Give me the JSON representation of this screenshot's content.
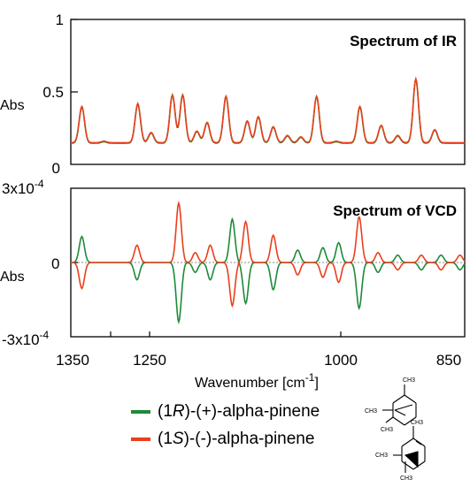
{
  "chart_data": [
    {
      "type": "line",
      "title": "Spectrum of IR",
      "xlabel": "",
      "ylabel": "Abs",
      "xlim": [
        1350,
        850
      ],
      "ylim": [
        0,
        1
      ],
      "y_ticks": [
        "0",
        "0.5",
        "1"
      ],
      "grid": false,
      "baseline": 0.15,
      "peaks": [
        {
          "x": 1336,
          "y": 0.4
        },
        {
          "x": 1308,
          "y": 0.16
        },
        {
          "x": 1265,
          "y": 0.42
        },
        {
          "x": 1248,
          "y": 0.22
        },
        {
          "x": 1221,
          "y": 0.48
        },
        {
          "x": 1208,
          "y": 0.48
        },
        {
          "x": 1190,
          "y": 0.23
        },
        {
          "x": 1177,
          "y": 0.29
        },
        {
          "x": 1153,
          "y": 0.47
        },
        {
          "x": 1126,
          "y": 0.3
        },
        {
          "x": 1112,
          "y": 0.33
        },
        {
          "x": 1093,
          "y": 0.26
        },
        {
          "x": 1075,
          "y": 0.2
        },
        {
          "x": 1058,
          "y": 0.19
        },
        {
          "x": 1038,
          "y": 0.47
        },
        {
          "x": 1013,
          "y": 0.16
        },
        {
          "x": 983,
          "y": 0.4
        },
        {
          "x": 956,
          "y": 0.27
        },
        {
          "x": 935,
          "y": 0.2
        },
        {
          "x": 912,
          "y": 0.59
        },
        {
          "x": 888,
          "y": 0.24
        }
      ],
      "series": [
        {
          "name": "(1R)-(+)-alpha-pinene",
          "color": "#1e8a3a"
        },
        {
          "name": "(1S)-(-)-alpha-pinene",
          "color": "#e8401c"
        }
      ]
    },
    {
      "type": "line",
      "title": "Spectrum of VCD",
      "xlabel": "Wavenumber [cm-1]",
      "ylabel": "Abs",
      "xlim": [
        1350,
        850
      ],
      "ylim": [
        -0.0003,
        0.0003
      ],
      "y_ticks": [
        "-3x10-4",
        "0",
        "3x10-4"
      ],
      "x_ticks": [
        "1350",
        "1250",
        "1000",
        "850"
      ],
      "grid": false,
      "zero_line": true,
      "peaks_1R": [
        {
          "x": 1336,
          "y": 0.000105
        },
        {
          "x": 1266,
          "y": -7e-05
        },
        {
          "x": 1213,
          "y": -0.00024
        },
        {
          "x": 1192,
          "y": -4e-05
        },
        {
          "x": 1173,
          "y": -7e-05
        },
        {
          "x": 1145,
          "y": 0.000175
        },
        {
          "x": 1128,
          "y": -0.000165
        },
        {
          "x": 1093,
          "y": -0.00011
        },
        {
          "x": 1062,
          "y": 5e-05
        },
        {
          "x": 1030,
          "y": 6e-05
        },
        {
          "x": 1010,
          "y": 8e-05
        },
        {
          "x": 984,
          "y": -0.000185
        },
        {
          "x": 960,
          "y": -4e-05
        },
        {
          "x": 935,
          "y": 3e-05
        },
        {
          "x": 905,
          "y": -3e-05
        },
        {
          "x": 880,
          "y": 3e-05
        },
        {
          "x": 856,
          "y": -3e-05
        }
      ],
      "series": [
        {
          "name": "(1R)-(+)-alpha-pinene",
          "color": "#1e8a3a"
        },
        {
          "name": "(1S)-(-)-alpha-pinene",
          "color": "#e8401c"
        }
      ]
    }
  ],
  "legend": [
    {
      "prefix": "(1",
      "italic": "R",
      "suffix": ")-(+)-alpha-pinene",
      "color": "#1e8a3a"
    },
    {
      "prefix": "(1",
      "italic": "S",
      "suffix": ")-(-)-alpha-pinene",
      "color": "#e8401c"
    }
  ],
  "molecule_labels": {
    "ch3": "CH3"
  }
}
